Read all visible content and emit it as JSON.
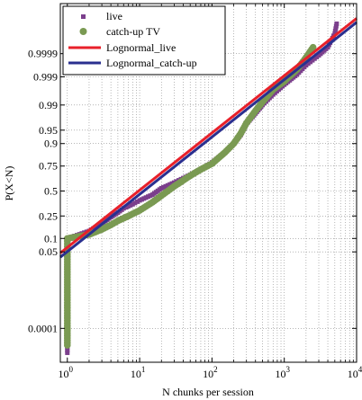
{
  "chart_data": {
    "type": "scatter",
    "title": "",
    "xlabel": "N chunks per session",
    "ylabel": "P(X<N)",
    "x_scale": "log",
    "y_scale": "normal-probability",
    "xlim": [
      0.8,
      10000
    ],
    "ylim": [
      1.8e-06,
      0.9999998
    ],
    "grid": true,
    "legend_position": "top-left",
    "x_ticks": [
      {
        "value": 1,
        "label": "10",
        "exp": "0"
      },
      {
        "value": 10,
        "label": "10",
        "exp": "1"
      },
      {
        "value": 100,
        "label": "10",
        "exp": "2"
      },
      {
        "value": 1000,
        "label": "10",
        "exp": "3"
      },
      {
        "value": 10000,
        "label": "10",
        "exp": "4"
      }
    ],
    "y_ticks": [
      {
        "value": 0.0001,
        "label": "0.0001"
      },
      {
        "value": 0.05,
        "label": "0.05"
      },
      {
        "value": 0.1,
        "label": "0.1"
      },
      {
        "value": 0.25,
        "label": "0.25"
      },
      {
        "value": 0.5,
        "label": "0.5"
      },
      {
        "value": 0.75,
        "label": "0.75"
      },
      {
        "value": 0.9,
        "label": "0.9"
      },
      {
        "value": 0.95,
        "label": "0.95"
      },
      {
        "value": 0.99,
        "label": "0.99"
      },
      {
        "value": 0.999,
        "label": "0.999"
      },
      {
        "value": 0.9999,
        "label": "0.9999"
      }
    ],
    "series": [
      {
        "name": "live",
        "kind": "markers",
        "marker": "square",
        "color": "#7b3f8c",
        "points": [
          [
            1,
            6e-06
          ],
          [
            1,
            2e-05
          ],
          [
            1,
            0.0002
          ],
          [
            1,
            0.002
          ],
          [
            1,
            0.02
          ],
          [
            1,
            0.05
          ],
          [
            1,
            0.1
          ],
          [
            2,
            0.14
          ],
          [
            3,
            0.19
          ],
          [
            4,
            0.24
          ],
          [
            5,
            0.28
          ],
          [
            6,
            0.32
          ],
          [
            8,
            0.36
          ],
          [
            10,
            0.4
          ],
          [
            15,
            0.46
          ],
          [
            20,
            0.53
          ],
          [
            30,
            0.59
          ],
          [
            50,
            0.67
          ],
          [
            70,
            0.72
          ],
          [
            100,
            0.78
          ],
          [
            150,
            0.85
          ],
          [
            200,
            0.9
          ],
          [
            250,
            0.935
          ],
          [
            300,
            0.965
          ],
          [
            400,
            0.982
          ],
          [
            500,
            0.99
          ],
          [
            700,
            0.9955
          ],
          [
            1000,
            0.998
          ],
          [
            1500,
            0.9992
          ],
          [
            2000,
            0.99967
          ],
          [
            3000,
            0.99988
          ],
          [
            4000,
            0.99995
          ],
          [
            5000,
            0.99999
          ],
          [
            5300,
            0.999997
          ]
        ]
      },
      {
        "name": "catch-up TV",
        "kind": "markers",
        "marker": "circle",
        "color": "#7a9a52",
        "points": [
          [
            1,
            1.5e-05
          ],
          [
            1,
            0.0001
          ],
          [
            1,
            0.001
          ],
          [
            1,
            0.01
          ],
          [
            1,
            0.05
          ],
          [
            1,
            0.1
          ],
          [
            2,
            0.12
          ],
          [
            3,
            0.15
          ],
          [
            4,
            0.18
          ],
          [
            5,
            0.21
          ],
          [
            7,
            0.25
          ],
          [
            10,
            0.3
          ],
          [
            15,
            0.38
          ],
          [
            20,
            0.45
          ],
          [
            30,
            0.55
          ],
          [
            50,
            0.66
          ],
          [
            70,
            0.72
          ],
          [
            100,
            0.77
          ],
          [
            150,
            0.85
          ],
          [
            200,
            0.9
          ],
          [
            250,
            0.94
          ],
          [
            300,
            0.967
          ],
          [
            400,
            0.985
          ],
          [
            500,
            0.992
          ],
          [
            700,
            0.997
          ],
          [
            1000,
            0.9985
          ],
          [
            1500,
            0.9995
          ],
          [
            2000,
            0.99985
          ],
          [
            2500,
            0.99995
          ]
        ]
      },
      {
        "name": "Lognormal_live",
        "kind": "line",
        "color": "#e8202a",
        "points": [
          [
            0.8,
            0.047
          ],
          [
            10000,
            0.9999985
          ]
        ]
      },
      {
        "name": "Lognormal_catch-up",
        "kind": "line",
        "color": "#2a2f8f",
        "points": [
          [
            0.8,
            0.037
          ],
          [
            10000,
            0.9999975
          ]
        ]
      }
    ]
  }
}
